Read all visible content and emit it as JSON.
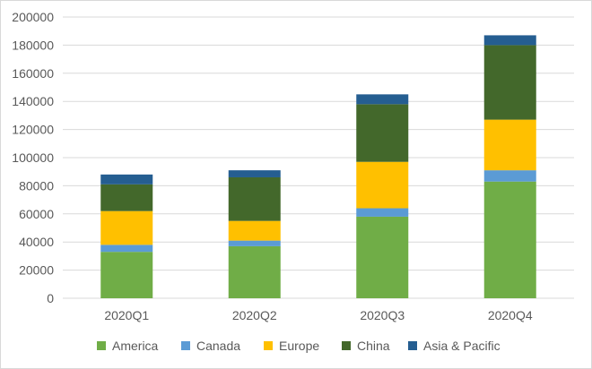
{
  "chart_data": {
    "type": "bar",
    "stacked": true,
    "categories": [
      "2020Q1",
      "2020Q2",
      "2020Q3",
      "2020Q4"
    ],
    "series": [
      {
        "name": "America",
        "color": "#70ad47",
        "values": [
          33000,
          37000,
          58000,
          83000
        ]
      },
      {
        "name": "Canada",
        "color": "#5b9bd5",
        "values": [
          5000,
          4000,
          6000,
          8000
        ]
      },
      {
        "name": "Europe",
        "color": "#ffc000",
        "values": [
          24000,
          14000,
          33000,
          36000
        ]
      },
      {
        "name": "China",
        "color": "#43682b",
        "values": [
          19000,
          31000,
          41000,
          53000
        ]
      },
      {
        "name": "Asia & Pacific",
        "color": "#255e91",
        "values": [
          7000,
          5000,
          7000,
          7000
        ]
      }
    ],
    "yticks": [
      "0",
      "20000",
      "40000",
      "60000",
      "80000",
      "100000",
      "120000",
      "140000",
      "160000",
      "180000",
      "200000"
    ],
    "ylim": [
      0,
      200000
    ],
    "grid": true,
    "legend_position": "bottom"
  }
}
